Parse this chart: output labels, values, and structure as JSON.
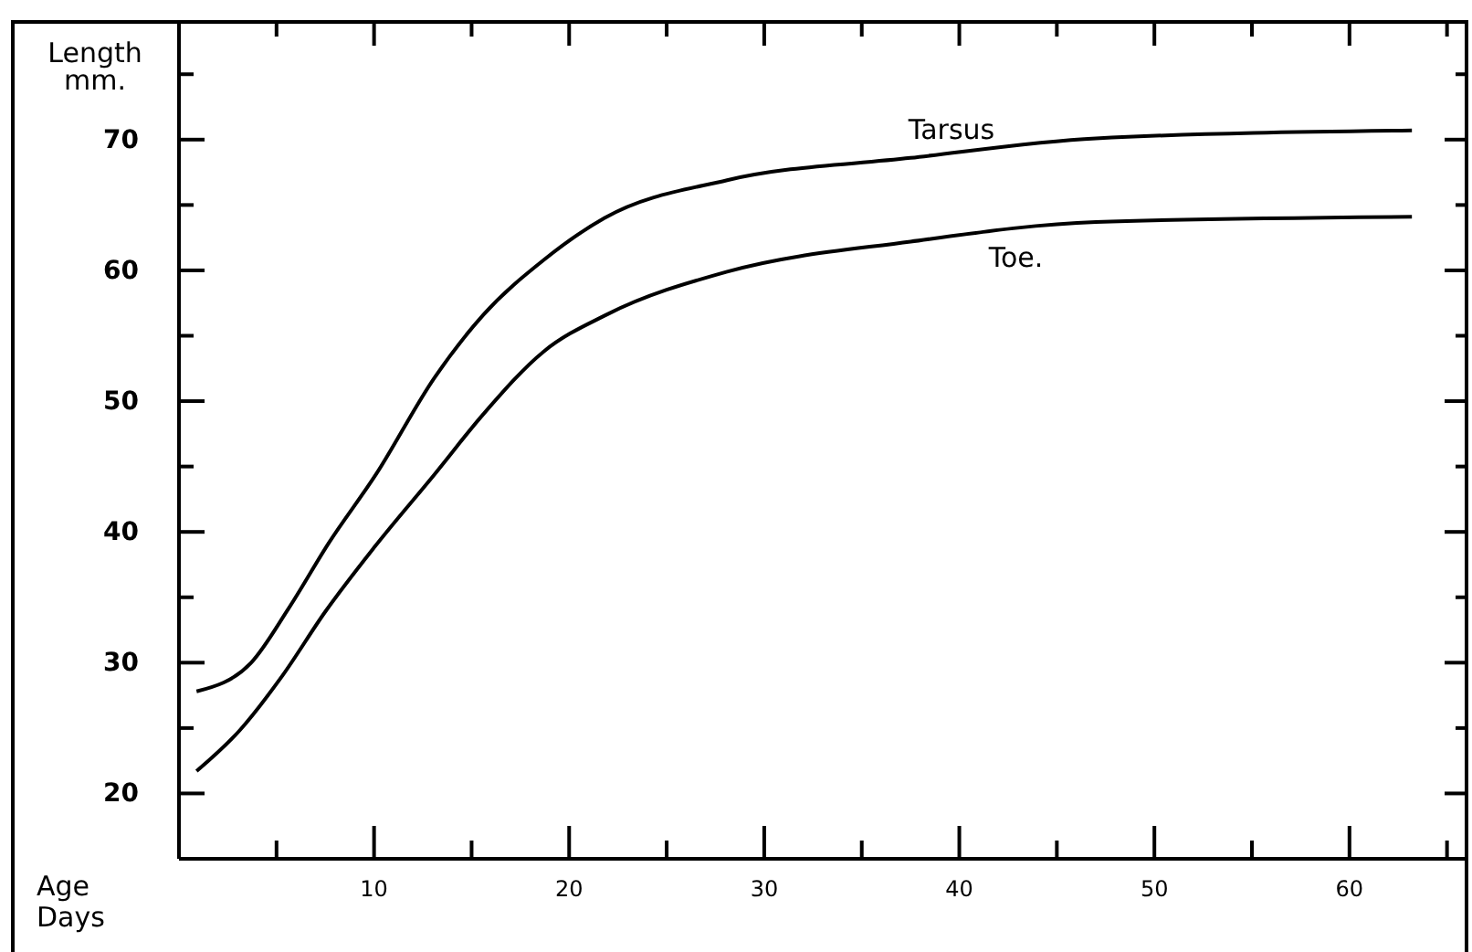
{
  "chart_data": {
    "type": "line",
    "xlabel": "Age Days",
    "ylabel": "Length mm.",
    "xlim": [
      0,
      66
    ],
    "ylim": [
      15,
      79
    ],
    "xticks": [
      {
        "value": 5,
        "label": null
      },
      10,
      {
        "value": 15,
        "label": null
      },
      20,
      {
        "value": 25,
        "label": null
      },
      30,
      {
        "value": 35,
        "label": null
      },
      40,
      {
        "value": 45,
        "label": null
      },
      50,
      {
        "value": 55,
        "label": null
      },
      60,
      {
        "value": 65,
        "label": null
      }
    ],
    "yticks": [
      20,
      {
        "value": 25,
        "label": null
      },
      30,
      {
        "value": 35,
        "label": null
      },
      40,
      {
        "value": 45,
        "label": null
      },
      50,
      {
        "value": 55,
        "label": null
      },
      60,
      {
        "value": 65,
        "label": null
      },
      70,
      {
        "value": 75,
        "label": null
      }
    ],
    "grid": false,
    "legend": false,
    "marker": "none",
    "line_style": "solid",
    "series": [
      {
        "name": "Tarsus",
        "color": "#000000",
        "x": [
          0.9,
          3.7,
          5.6,
          7.7,
          10.1,
          13.1,
          15.6,
          18.7,
          21.8,
          28.1,
          37.5,
          47,
          63.2
        ],
        "values": [
          27.8,
          30.0,
          34.1,
          39.2,
          44.4,
          51.8,
          56.6,
          60.8,
          64.0,
          66.9,
          68.6,
          70.1,
          70.7
        ]
      },
      {
        "name": "Toe.",
        "color": "#000000",
        "x": [
          0.9,
          3.1,
          5.3,
          7.5,
          10,
          13.1,
          15.6,
          18.7,
          21.9,
          28.1,
          37.5,
          47,
          63.2
        ],
        "values": [
          21.7,
          24.8,
          29,
          33.9,
          38.8,
          44.4,
          49,
          53.8,
          56.6,
          59.9,
          62.2,
          63.7,
          64.1
        ]
      }
    ]
  }
}
